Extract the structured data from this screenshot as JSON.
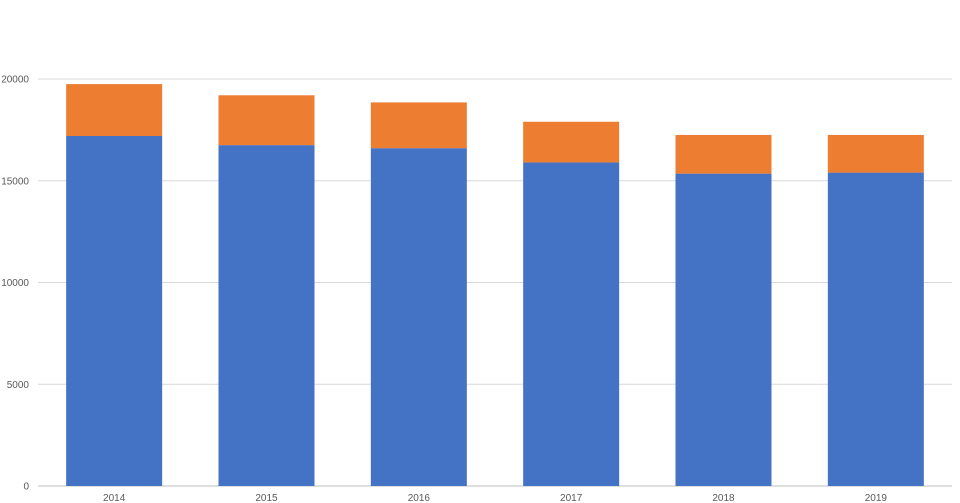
{
  "chart_data": {
    "type": "bar",
    "stacked": true,
    "categories": [
      "2014",
      "2015",
      "2016",
      "2017",
      "2018",
      "2019"
    ],
    "series": [
      {
        "values": [
          17200,
          16750,
          16600,
          15900,
          15350,
          15400
        ],
        "color": "#4472C4"
      },
      {
        "values": [
          2550,
          2450,
          2250,
          2000,
          1900,
          1850
        ],
        "color": "#ED7D31"
      }
    ],
    "ylim": [
      0,
      20000
    ],
    "yticks": [
      0,
      5000,
      10000,
      15000,
      20000
    ],
    "grid": true,
    "legend": "none"
  }
}
